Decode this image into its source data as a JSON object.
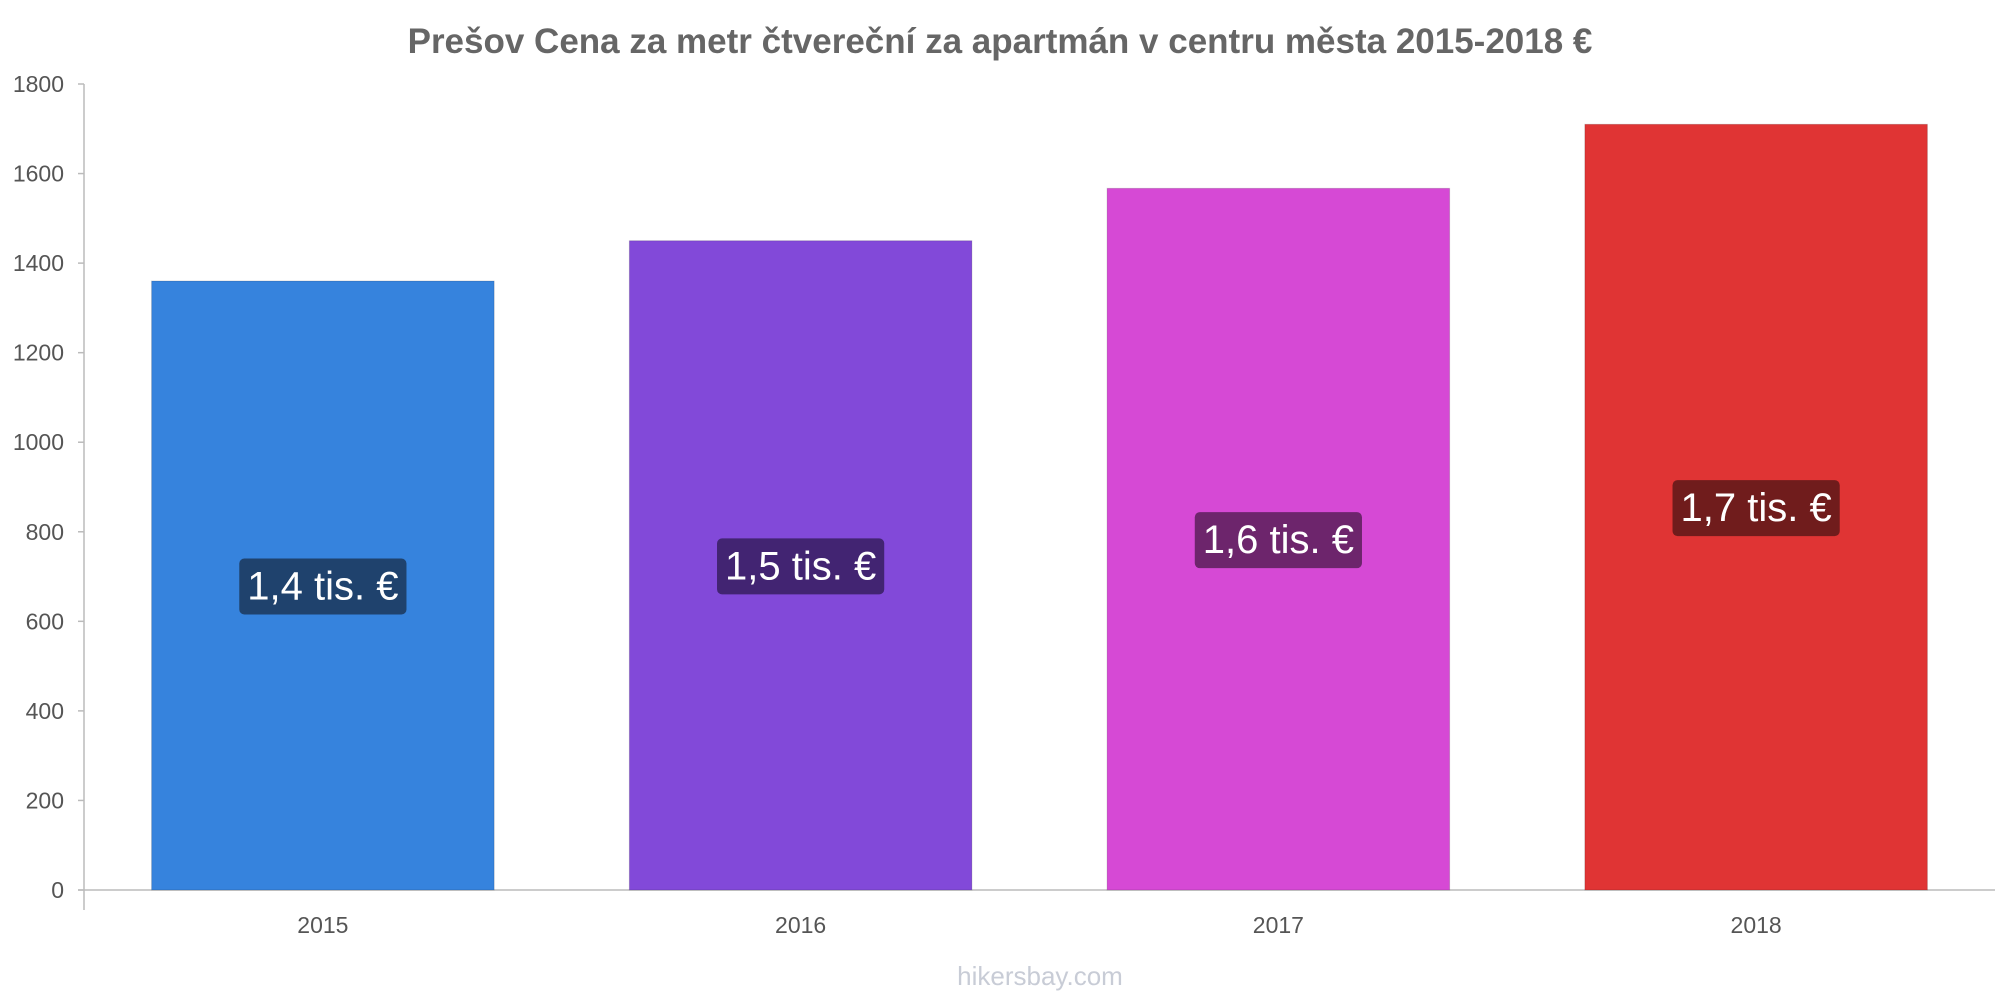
{
  "chart_data": {
    "type": "bar",
    "title": "Prešov Cena za metr čtvereční za apartmán v centru města 2015-2018 €",
    "categories": [
      "2015",
      "2016",
      "2017",
      "2018"
    ],
    "values": [
      1360,
      1450,
      1567,
      1710
    ],
    "data_labels": [
      "1,4 tis. €",
      "1,5 tis. €",
      "1,6 tis. €",
      "1,7 tis. €"
    ],
    "colors": [
      "#3683dd",
      "#8249d9",
      "#d649d5",
      "#e03434"
    ],
    "label_bg_colors": [
      "#1f426d",
      "#422472",
      "#6d256c",
      "#701c1c"
    ],
    "ylim": [
      0,
      1800
    ],
    "yticks": [
      "0",
      "200",
      "400",
      "600",
      "800",
      "1000",
      "1200",
      "1400",
      "1600",
      "1800"
    ],
    "xlabel": "",
    "ylabel": "",
    "grid": false,
    "legend": "none"
  },
  "watermark": "hikersbay.com"
}
